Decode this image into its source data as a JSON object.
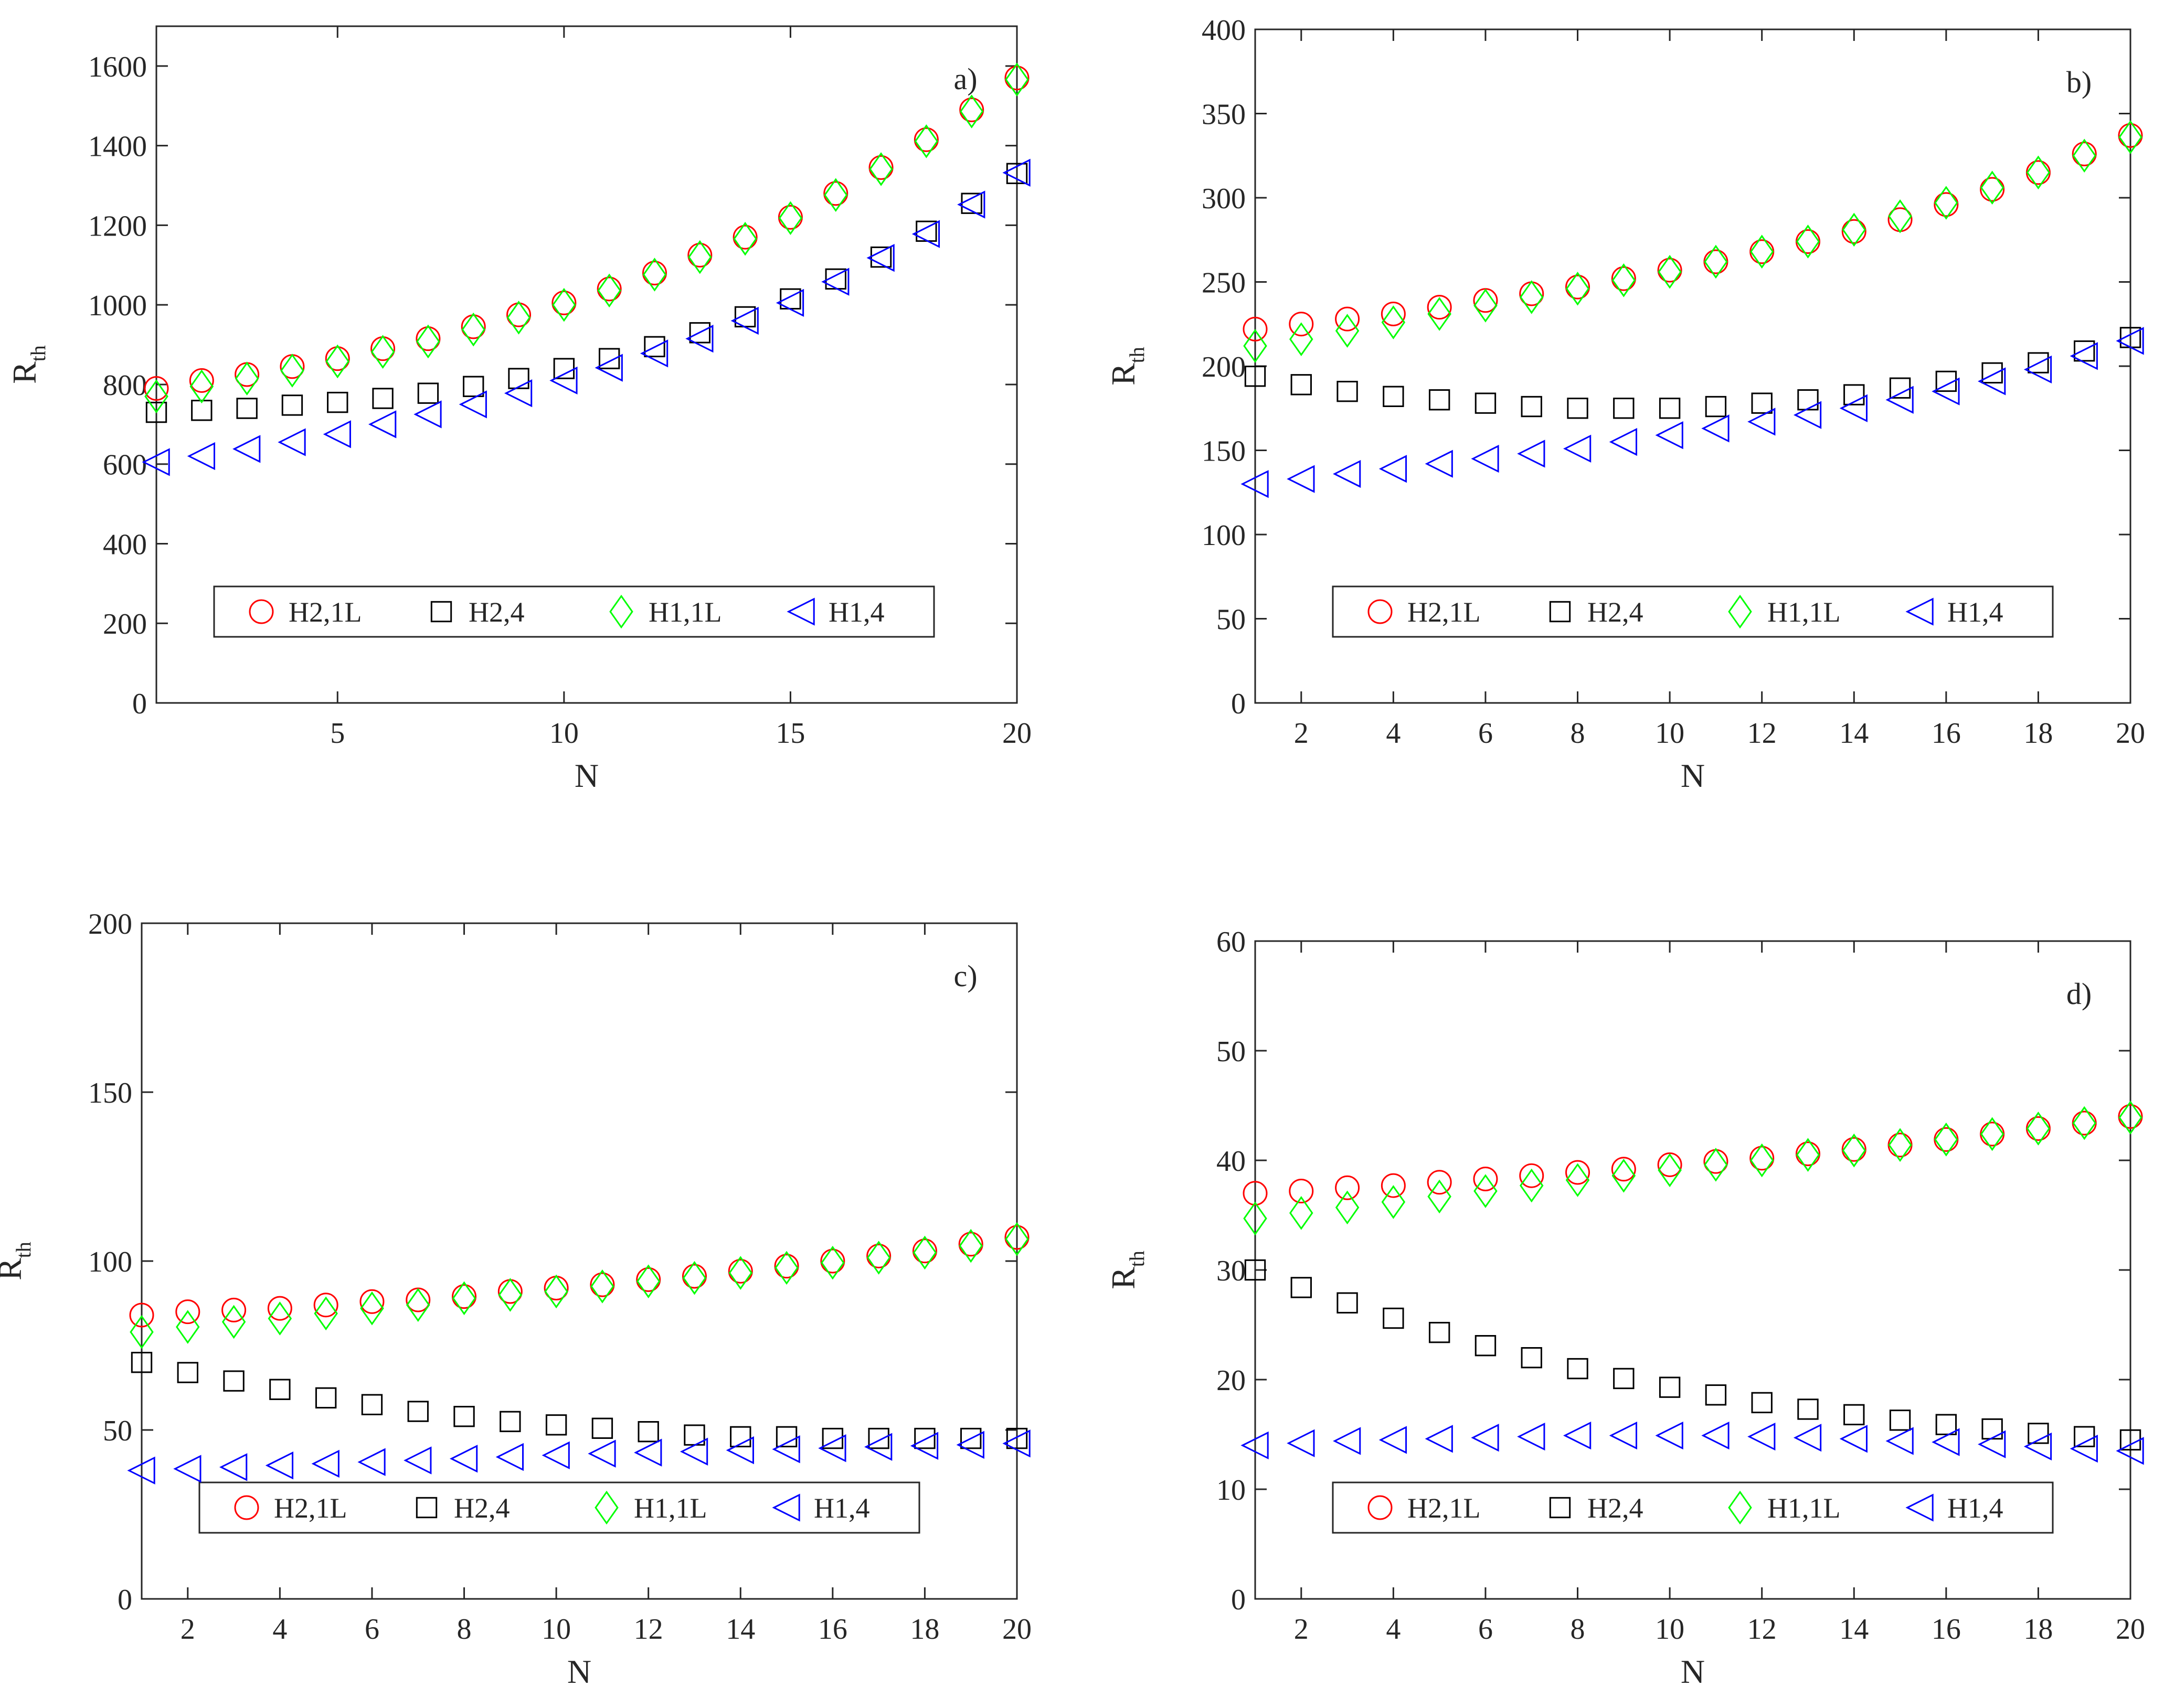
{
  "figure": {
    "panel_count": 4,
    "colors": {
      "H2,1L": "#ff0000",
      "H2,4": "#000000",
      "H1,1L": "#00ff00",
      "H1,4": "#0000ff"
    },
    "icons": {
      "H2,1L": "circle-marker",
      "H2,4": "square-marker",
      "H1,1L": "diamond-marker",
      "H1,4": "left-triangle-marker"
    }
  },
  "chart_data": [
    {
      "id": "a",
      "type": "scatter",
      "panel_label": "a)",
      "xlabel": "N",
      "ylabel": "R",
      "ylabel_sub": "th",
      "xlim": [
        1,
        20
      ],
      "ylim": [
        0,
        1700
      ],
      "xticks": [
        5,
        10,
        15,
        20
      ],
      "yticks": [
        0,
        200,
        400,
        600,
        800,
        1000,
        1200,
        1400,
        1600
      ],
      "x": [
        1,
        2,
        3,
        4,
        5,
        6,
        7,
        8,
        9,
        10,
        11,
        12,
        13,
        14,
        15,
        16,
        17,
        18,
        19,
        20
      ],
      "series": [
        {
          "name": "H2,1L",
          "marker": "circle",
          "color": "#ff0000",
          "values": [
            790,
            810,
            825,
            845,
            865,
            890,
            915,
            945,
            975,
            1005,
            1040,
            1080,
            1125,
            1170,
            1220,
            1280,
            1345,
            1415,
            1490,
            1570
          ]
        },
        {
          "name": "H2,4",
          "marker": "square",
          "color": "#000000",
          "values": [
            730,
            735,
            740,
            748,
            755,
            765,
            778,
            795,
            815,
            840,
            865,
            895,
            930,
            970,
            1015,
            1065,
            1120,
            1185,
            1255,
            1330
          ]
        },
        {
          "name": "H1,1L",
          "marker": "diamond",
          "color": "#00ff00",
          "values": [
            770,
            795,
            815,
            835,
            858,
            882,
            908,
            938,
            968,
            1000,
            1036,
            1076,
            1120,
            1166,
            1218,
            1276,
            1341,
            1411,
            1486,
            1566
          ]
        },
        {
          "name": "H1,4",
          "marker": "left-triangle",
          "color": "#0000ff",
          "values": [
            605,
            620,
            638,
            655,
            675,
            700,
            725,
            750,
            778,
            810,
            842,
            878,
            915,
            960,
            1005,
            1058,
            1118,
            1178,
            1252,
            1332
          ]
        }
      ],
      "legend": [
        "H2,1L",
        "H2,4",
        "H1,1L",
        "H1,4"
      ],
      "legend_position": "bottom-center"
    },
    {
      "id": "b",
      "type": "scatter",
      "panel_label": "b)",
      "xlabel": "N",
      "ylabel": "R",
      "ylabel_sub": "th",
      "xlim": [
        1,
        20
      ],
      "ylim": [
        0,
        400
      ],
      "xticks": [
        2,
        4,
        6,
        8,
        10,
        12,
        14,
        16,
        18,
        20
      ],
      "yticks": [
        0,
        50,
        100,
        150,
        200,
        250,
        300,
        350,
        400
      ],
      "x": [
        1,
        2,
        3,
        4,
        5,
        6,
        7,
        8,
        9,
        10,
        11,
        12,
        13,
        14,
        15,
        16,
        17,
        18,
        19,
        20
      ],
      "series": [
        {
          "name": "H2,1L",
          "marker": "circle",
          "color": "#ff0000",
          "values": [
            222,
            225,
            228,
            231,
            235,
            239,
            243,
            247,
            252,
            257,
            262,
            268,
            274,
            280,
            287,
            296,
            305,
            315,
            326,
            337
          ]
        },
        {
          "name": "H2,4",
          "marker": "square",
          "color": "#000000",
          "values": [
            194,
            189,
            185,
            182,
            180,
            178,
            176,
            175,
            175,
            175,
            176,
            178,
            180,
            183,
            187,
            191,
            196,
            202,
            209,
            217
          ]
        },
        {
          "name": "H1,1L",
          "marker": "diamond",
          "color": "#00ff00",
          "values": [
            212,
            216,
            221,
            226,
            231,
            236,
            241,
            246,
            251,
            256,
            262,
            268,
            274,
            281,
            289,
            297,
            306,
            315,
            325,
            336
          ]
        },
        {
          "name": "H1,4",
          "marker": "left-triangle",
          "color": "#0000ff",
          "values": [
            130,
            133,
            136,
            139,
            142,
            145,
            148,
            151,
            155,
            159,
            163,
            167,
            171,
            175,
            180,
            185,
            191,
            198,
            206,
            215
          ]
        }
      ],
      "legend": [
        "H2,1L",
        "H2,4",
        "H1,1L",
        "H1,4"
      ],
      "legend_position": "bottom-center"
    },
    {
      "id": "c",
      "type": "scatter",
      "panel_label": "c)",
      "xlabel": "N",
      "ylabel": "R",
      "ylabel_sub": "th",
      "xlim": [
        1,
        20
      ],
      "ylim": [
        0,
        200
      ],
      "xticks": [
        2,
        4,
        6,
        8,
        10,
        12,
        14,
        16,
        18,
        20
      ],
      "yticks": [
        0,
        50,
        100,
        150,
        200
      ],
      "x": [
        1,
        2,
        3,
        4,
        5,
        6,
        7,
        8,
        9,
        10,
        11,
        12,
        13,
        14,
        15,
        16,
        17,
        18,
        19,
        20
      ],
      "series": [
        {
          "name": "H2,1L",
          "marker": "circle",
          "color": "#ff0000",
          "values": [
            84,
            85,
            85.5,
            86,
            87,
            88,
            88.5,
            89.5,
            91,
            92,
            93,
            94.5,
            95.5,
            97,
            98.5,
            100,
            101.5,
            103,
            105,
            107
          ]
        },
        {
          "name": "H2,4",
          "marker": "square",
          "color": "#000000",
          "values": [
            70,
            67,
            64.5,
            62,
            59.5,
            57.5,
            55.5,
            54,
            52.5,
            51.5,
            50.5,
            49.5,
            48.5,
            48,
            48,
            47.5,
            47.5,
            47.5,
            47.5,
            47.5
          ]
        },
        {
          "name": "H1,1L",
          "marker": "diamond",
          "color": "#00ff00",
          "values": [
            79,
            80.5,
            82,
            83,
            84.5,
            86,
            87,
            89,
            90,
            91,
            92.5,
            94,
            95,
            96.5,
            98,
            99.5,
            101,
            102.5,
            104.5,
            106.5
          ]
        },
        {
          "name": "H1,4",
          "marker": "left-triangle",
          "color": "#0000ff",
          "values": [
            38,
            38.5,
            39,
            39.5,
            40,
            40.5,
            41,
            41.5,
            42,
            42.5,
            43,
            43.3,
            43.6,
            44,
            44.3,
            44.6,
            45,
            45.3,
            45.6,
            46
          ]
        }
      ],
      "legend": [
        "H2,1L",
        "H2,4",
        "H1,1L",
        "H1,4"
      ],
      "legend_position": "bottom-center"
    },
    {
      "id": "d",
      "type": "scatter",
      "panel_label": "d)",
      "xlabel": "N",
      "ylabel": "R",
      "ylabel_sub": "th",
      "xlim": [
        1,
        20
      ],
      "ylim": [
        0,
        60
      ],
      "xticks": [
        2,
        4,
        6,
        8,
        10,
        12,
        14,
        16,
        18,
        20
      ],
      "yticks": [
        0,
        10,
        20,
        30,
        40,
        50,
        60
      ],
      "x": [
        1,
        2,
        3,
        4,
        5,
        6,
        7,
        8,
        9,
        10,
        11,
        12,
        13,
        14,
        15,
        16,
        17,
        18,
        19,
        20
      ],
      "series": [
        {
          "name": "H2,1L",
          "marker": "circle",
          "color": "#ff0000",
          "values": [
            37,
            37.2,
            37.5,
            37.7,
            38,
            38.3,
            38.6,
            38.9,
            39.2,
            39.6,
            39.9,
            40.2,
            40.6,
            41,
            41.4,
            41.9,
            42.4,
            42.9,
            43.4,
            44
          ]
        },
        {
          "name": "H2,4",
          "marker": "square",
          "color": "#000000",
          "values": [
            30,
            28.4,
            27,
            25.6,
            24.3,
            23.1,
            22,
            21,
            20.1,
            19.3,
            18.6,
            17.9,
            17.3,
            16.8,
            16.3,
            15.9,
            15.5,
            15.1,
            14.8,
            14.5
          ]
        },
        {
          "name": "H1,1L",
          "marker": "diamond",
          "color": "#00ff00",
          "values": [
            34.7,
            35.2,
            35.7,
            36.2,
            36.7,
            37.2,
            37.7,
            38.2,
            38.6,
            39.1,
            39.6,
            40,
            40.5,
            40.9,
            41.4,
            41.9,
            42.4,
            42.9,
            43.4,
            43.9
          ]
        },
        {
          "name": "H1,4",
          "marker": "left-triangle",
          "color": "#0000ff",
          "values": [
            14,
            14.2,
            14.4,
            14.5,
            14.6,
            14.7,
            14.8,
            14.9,
            14.9,
            14.9,
            14.9,
            14.8,
            14.7,
            14.6,
            14.4,
            14.3,
            14.1,
            13.9,
            13.7,
            13.5
          ]
        }
      ],
      "legend": [
        "H2,1L",
        "H2,4",
        "H1,1L",
        "H1,4"
      ],
      "legend_position": "bottom-center"
    }
  ]
}
